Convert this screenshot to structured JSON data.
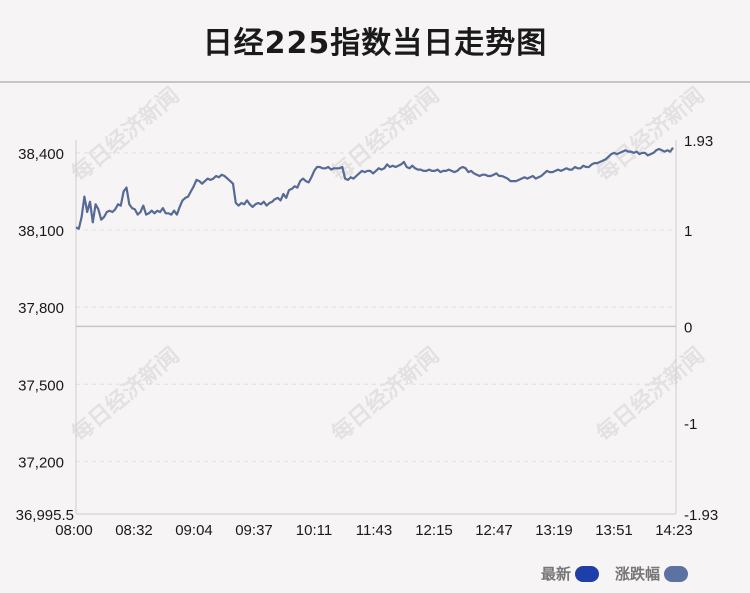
{
  "title": "日经225指数当日走势图",
  "watermark": "每日经济新闻",
  "legend": {
    "latest_label": "最新",
    "change_label": "涨跌幅",
    "latest_color": "#1f3fa8",
    "change_color": "#5c72a3"
  },
  "colors": {
    "line": "#566a96",
    "grid": "#e3dfe1",
    "baseline": "#c9c5c7",
    "axis_text": "#1a1a1a"
  },
  "chart_data": {
    "type": "line",
    "title": "日经225指数当日走势图",
    "xlabel": "",
    "ylabel": "",
    "x_ticks": [
      "08:00",
      "08:32",
      "09:04",
      "09:37",
      "10:11",
      "11:43",
      "12:15",
      "12:47",
      "13:19",
      "13:51",
      "14:23"
    ],
    "y_ticks_left": [
      38400,
      38100,
      37800,
      37500,
      37200
    ],
    "y_tick_labels_left": [
      "38,400",
      "38,100",
      "37,800",
      "37,500",
      "37,200"
    ],
    "y_min_label": "36,995.5",
    "y_ticks_right": [
      "1.93",
      "1",
      "0",
      "-1",
      "-1.93"
    ],
    "ylim": [
      36995.5,
      38450
    ],
    "baseline_value": 37725,
    "grid": true,
    "legend_position": "bottom-right",
    "series": [
      {
        "name": "最新",
        "values": [
          38110,
          38105,
          38150,
          38230,
          38170,
          38210,
          38130,
          38200,
          38180,
          38140,
          38150,
          38170,
          38175,
          38170,
          38180,
          38200,
          38195,
          38250,
          38265,
          38200,
          38185,
          38180,
          38160,
          38170,
          38195,
          38160,
          38165,
          38175,
          38165,
          38175,
          38170,
          38185,
          38165,
          38165,
          38160,
          38175,
          38160,
          38190,
          38215,
          38225,
          38230,
          38250,
          38270,
          38295,
          38290,
          38280,
          38290,
          38300,
          38295,
          38300,
          38310,
          38305,
          38315,
          38310,
          38300,
          38290,
          38280,
          38205,
          38195,
          38205,
          38200,
          38215,
          38200,
          38190,
          38200,
          38205,
          38200,
          38210,
          38195,
          38205,
          38210,
          38220,
          38225,
          38215,
          38240,
          38225,
          38255,
          38260,
          38270,
          38265,
          38290,
          38300,
          38290,
          38285,
          38305,
          38330,
          38345,
          38345,
          38340,
          38340,
          38345,
          38335,
          38340,
          38340,
          38340,
          38345,
          38300,
          38295,
          38305,
          38300,
          38310,
          38320,
          38330,
          38325,
          38330,
          38330,
          38320,
          38330,
          38340,
          38335,
          38340,
          38355,
          38345,
          38350,
          38345,
          38350,
          38355,
          38365,
          38345,
          38340,
          38350,
          38340,
          38335,
          38335,
          38330,
          38330,
          38335,
          38330,
          38330,
          38335,
          38325,
          38330,
          38330,
          38335,
          38330,
          38325,
          38330,
          38340,
          38345,
          38340,
          38325,
          38330,
          38320,
          38315,
          38310,
          38315,
          38315,
          38310,
          38310,
          38315,
          38320,
          38310,
          38310,
          38305,
          38300,
          38290,
          38290,
          38290,
          38295,
          38300,
          38305,
          38300,
          38305,
          38310,
          38300,
          38305,
          38310,
          38320,
          38330,
          38325,
          38325,
          38330,
          38335,
          38330,
          38335,
          38340,
          38335,
          38335,
          38345,
          38340,
          38340,
          38350,
          38345,
          38345,
          38355,
          38360,
          38360,
          38365,
          38370,
          38375,
          38385,
          38395,
          38400,
          38395,
          38400,
          38405,
          38410,
          38405,
          38405,
          38400,
          38405,
          38395,
          38400,
          38400,
          38390,
          38395,
          38400,
          38410,
          38415,
          38410,
          38405,
          38410,
          38405,
          38420
        ]
      }
    ]
  }
}
